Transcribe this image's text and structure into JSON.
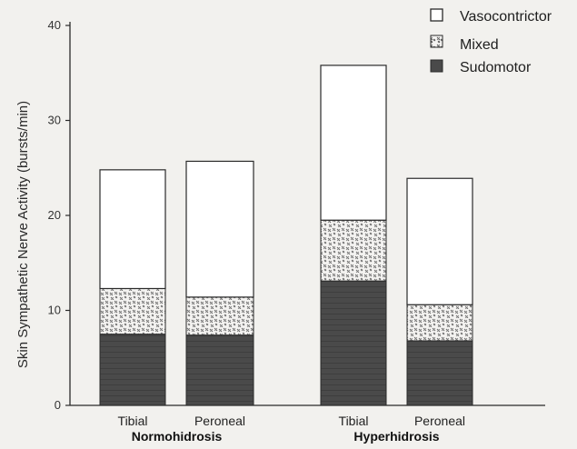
{
  "chart_data": {
    "type": "bar",
    "stacked": true,
    "ylabel": "Skin Sympathetic Nerve Activity (bursts/min)",
    "ylim": [
      0,
      40
    ],
    "yticks": [
      0,
      10,
      20,
      30,
      40
    ],
    "groups": [
      {
        "label": "Normohidrosis",
        "categories": [
          "Tibial",
          "Peroneal"
        ]
      },
      {
        "label": "Hyperhidrosis",
        "categories": [
          "Tibial",
          "Peroneal"
        ]
      }
    ],
    "bars": [
      {
        "group": "Normohidrosis",
        "category": "Tibial",
        "sudomotor": 7.5,
        "mixed": 4.8,
        "vasocontrictor": 12.5
      },
      {
        "group": "Normohidrosis",
        "category": "Peroneal",
        "sudomotor": 7.4,
        "mixed": 4.0,
        "vasocontrictor": 14.3
      },
      {
        "group": "Hyperhidrosis",
        "category": "Tibial",
        "sudomotor": 13.1,
        "mixed": 6.4,
        "vasocontrictor": 16.3
      },
      {
        "group": "Hyperhidrosis",
        "category": "Peroneal",
        "sudomotor": 6.8,
        "mixed": 3.8,
        "vasocontrictor": 13.3
      }
    ],
    "series": [
      {
        "name": "Vasocontrictor",
        "fill": "white"
      },
      {
        "name": "Mixed",
        "fill": "cross-hatch"
      },
      {
        "name": "Sudomotor",
        "fill": "dark"
      }
    ],
    "legend_position": "top-right",
    "grid": false
  },
  "colors": {
    "background": "#f2f1ee",
    "sudomotor": "#4a4a4a",
    "sudomotor_band": "#3a3a3a",
    "mixed_bg": "#f4f3f1",
    "mixed_mark": "#6a6a6a",
    "vasocontrictor": "#ffffff",
    "outline": "#2a2a2a"
  }
}
